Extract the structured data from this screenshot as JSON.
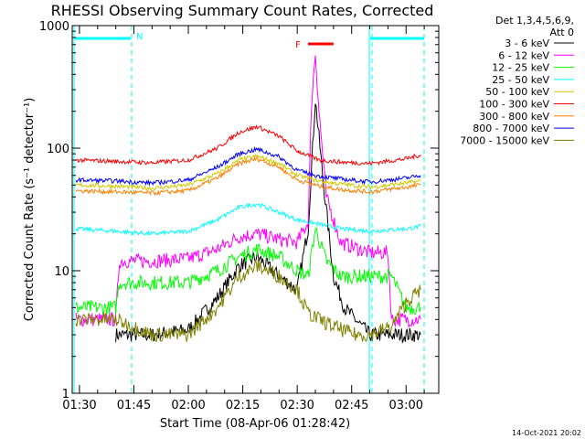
{
  "chart_data": {
    "type": "line",
    "title": "RHESSI Observing Summary Count Rates, Corrected",
    "xlabel": "Start Time (08-Apr-06 01:28:42)",
    "ylabel": "Corrected Count Rate (s⁻¹ detector⁻¹)",
    "y_scale": "log",
    "ylim": [
      1,
      1000
    ],
    "xlim": [
      "01:28",
      "03:09"
    ],
    "x_ticks": [
      "01:30",
      "01:45",
      "02:00",
      "02:15",
      "02:30",
      "02:45",
      "03:00"
    ],
    "y_ticks": [
      "1",
      "10",
      "100",
      "1000"
    ],
    "legend_header": [
      "Det 1,3,4,5,6,9,",
      "Att 0"
    ],
    "legend_placement": "right",
    "footer_date": "14-Oct-2021 20:02",
    "annotations": {
      "night_marker": "N",
      "flare_marker": "F",
      "flare_bar": [
        "02:33",
        "02:40"
      ]
    },
    "series": [
      {
        "name": "3 - 6 keV",
        "color": "#000000",
        "x": [
          "01:40",
          "01:50",
          "02:00",
          "02:08",
          "02:14",
          "02:19",
          "02:25",
          "02:30",
          "02:33",
          "02:35",
          "02:37",
          "02:40",
          "02:43",
          "02:46",
          "02:50",
          "02:55",
          "03:00",
          "03:04"
        ],
        "values": [
          3,
          3,
          3.3,
          6,
          11,
          13,
          9,
          7,
          22,
          250,
          60,
          9,
          5,
          4,
          3,
          3,
          3,
          3
        ]
      },
      {
        "name": "6 - 12 keV",
        "color": "#ff00ff",
        "x": [
          "01:29",
          "01:40",
          "01:41",
          "01:50",
          "02:00",
          "02:08",
          "02:14",
          "02:19",
          "02:25",
          "02:30",
          "02:33",
          "02:34",
          "02:35",
          "02:36",
          "02:38",
          "02:42",
          "02:50",
          "02:55",
          "02:56",
          "03:00",
          "03:04"
        ],
        "values": [
          4,
          4,
          12,
          12,
          12.5,
          15,
          19,
          20,
          18,
          17,
          25,
          250,
          600,
          200,
          40,
          17,
          14,
          14,
          4,
          4,
          4
        ]
      },
      {
        "name": "12 - 25 keV",
        "color": "#00ff00",
        "x": [
          "01:29",
          "01:40",
          "01:41",
          "01:50",
          "02:00",
          "02:08",
          "02:14",
          "02:19",
          "02:25",
          "02:30",
          "02:33",
          "02:35",
          "02:38",
          "02:42",
          "02:50",
          "02:56",
          "03:00",
          "03:04"
        ],
        "values": [
          5,
          5,
          8,
          8,
          8,
          10,
          13,
          15,
          13,
          10,
          9,
          22,
          12,
          9,
          9,
          9,
          5,
          5
        ]
      },
      {
        "name": "25 - 50 keV",
        "color": "#00ffff",
        "x": [
          "01:29",
          "01:40",
          "01:50",
          "02:00",
          "02:08",
          "02:14",
          "02:19",
          "02:25",
          "02:30",
          "02:36",
          "02:42",
          "02:50",
          "03:00",
          "03:04"
        ],
        "values": [
          22,
          21,
          20,
          21,
          26,
          33,
          35,
          30,
          26,
          24,
          22,
          21,
          22,
          23
        ]
      },
      {
        "name": "50 - 100 keV",
        "color": "#d2c800",
        "x": [
          "01:29",
          "01:40",
          "01:50",
          "02:00",
          "02:08",
          "02:14",
          "02:19",
          "02:25",
          "02:30",
          "02:36",
          "02:42",
          "02:50",
          "03:00",
          "03:04"
        ],
        "values": [
          50,
          49,
          47,
          50,
          62,
          80,
          86,
          75,
          60,
          54,
          51,
          48,
          52,
          54
        ]
      },
      {
        "name": "100 - 300 keV",
        "color": "#ff0000",
        "x": [
          "01:29",
          "01:40",
          "01:50",
          "02:00",
          "02:08",
          "02:14",
          "02:19",
          "02:25",
          "02:30",
          "02:36",
          "02:42",
          "02:50",
          "03:00",
          "03:04"
        ],
        "values": [
          80,
          78,
          76,
          80,
          100,
          135,
          150,
          125,
          95,
          80,
          77,
          75,
          82,
          88
        ]
      },
      {
        "name": "300 - 800 keV",
        "color": "#ff7f00",
        "x": [
          "01:29",
          "01:40",
          "01:50",
          "02:00",
          "02:08",
          "02:14",
          "02:19",
          "02:25",
          "02:30",
          "02:36",
          "02:42",
          "02:50",
          "03:00",
          "03:04"
        ],
        "values": [
          45,
          44,
          43,
          45,
          57,
          75,
          82,
          70,
          55,
          49,
          46,
          44,
          48,
          50
        ]
      },
      {
        "name": "800 - 7000 keV",
        "color": "#0000ff",
        "x": [
          "01:29",
          "01:40",
          "01:50",
          "02:00",
          "02:08",
          "02:14",
          "02:19",
          "02:25",
          "02:30",
          "02:36",
          "02:42",
          "02:50",
          "03:00",
          "03:04"
        ],
        "values": [
          55,
          54,
          52,
          55,
          70,
          90,
          98,
          85,
          66,
          59,
          56,
          53,
          57,
          60
        ]
      },
      {
        "name": "7000 - 15000 keV",
        "color": "#808000",
        "x": [
          "01:29",
          "01:40",
          "01:50",
          "02:00",
          "02:08",
          "02:14",
          "02:19",
          "02:25",
          "02:30",
          "02:33",
          "02:36",
          "02:40",
          "02:46",
          "02:50",
          "02:56",
          "03:00",
          "03:04"
        ],
        "values": [
          4,
          4,
          3,
          3,
          5,
          9,
          11,
          9,
          7,
          4.5,
          4,
          3.5,
          3,
          3,
          3.5,
          5.5,
          7
        ]
      }
    ]
  }
}
